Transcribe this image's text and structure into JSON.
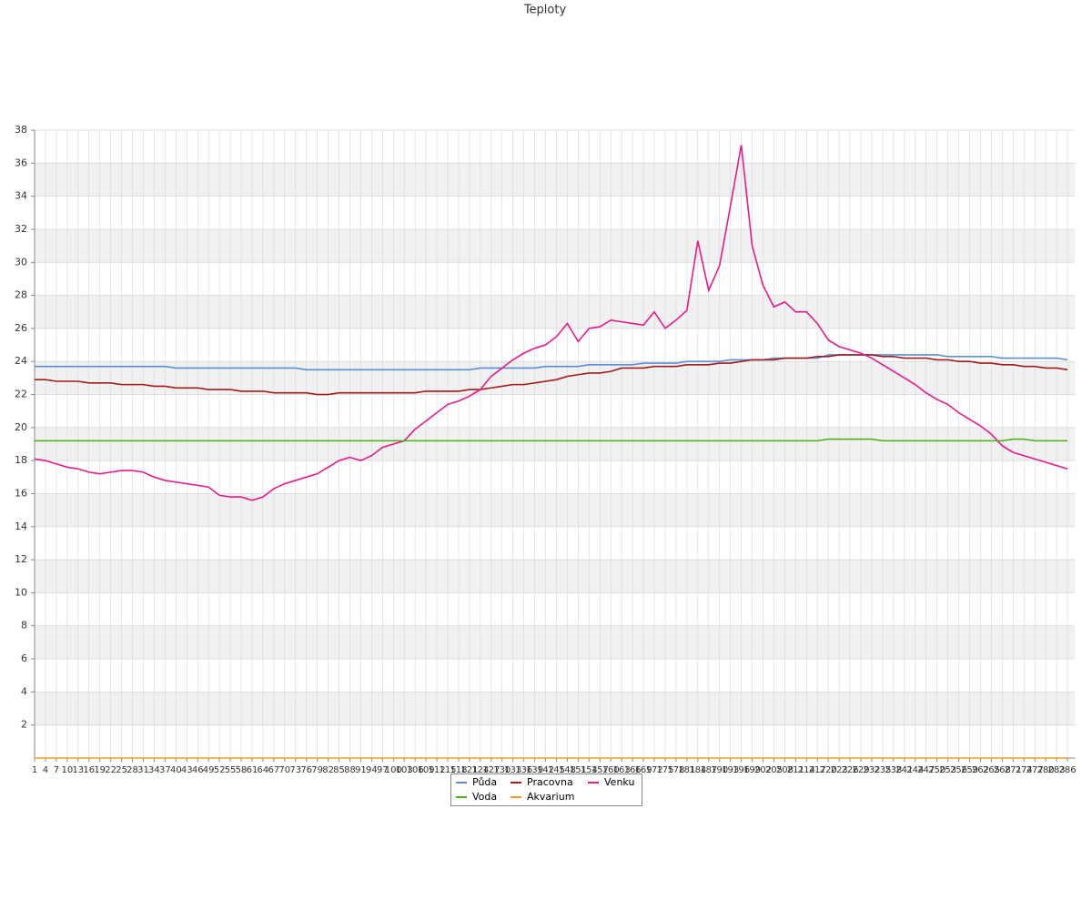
{
  "chart_data": {
    "type": "line",
    "title": "Teploty",
    "x": [
      1,
      4,
      7,
      10,
      13,
      16,
      19,
      22,
      25,
      28,
      31,
      34,
      37,
      40,
      43,
      46,
      49,
      52,
      55,
      58,
      61,
      64,
      67,
      70,
      73,
      76,
      79,
      82,
      85,
      88,
      91,
      94,
      97,
      100,
      103,
      106,
      109,
      112,
      115,
      118,
      121,
      124,
      127,
      130,
      133,
      136,
      139,
      142,
      145,
      148,
      151,
      154,
      157,
      160,
      163,
      166,
      169,
      172,
      175,
      178,
      181,
      184,
      187,
      190,
      193,
      196,
      199,
      202,
      205,
      208,
      211,
      214,
      217,
      220,
      223,
      226,
      229,
      232,
      235,
      238,
      241,
      244,
      247,
      250,
      253,
      256,
      259,
      262,
      265,
      268,
      271,
      274,
      277,
      280,
      283,
      286
    ],
    "xlim": [
      1,
      288
    ],
    "ylim": [
      0,
      38
    ],
    "yticks": [
      2,
      4,
      6,
      8,
      10,
      12,
      14,
      16,
      18,
      20,
      22,
      24,
      26,
      28,
      30,
      32,
      34,
      36,
      38
    ],
    "grid": true,
    "series": [
      {
        "name": "Půda",
        "color": "#5b8fd6",
        "values": [
          23.7,
          23.7,
          23.7,
          23.7,
          23.7,
          23.7,
          23.7,
          23.7,
          23.7,
          23.7,
          23.7,
          23.7,
          23.7,
          23.6,
          23.6,
          23.6,
          23.6,
          23.6,
          23.6,
          23.6,
          23.6,
          23.6,
          23.6,
          23.6,
          23.6,
          23.5,
          23.5,
          23.5,
          23.5,
          23.5,
          23.5,
          23.5,
          23.5,
          23.5,
          23.5,
          23.5,
          23.5,
          23.5,
          23.5,
          23.5,
          23.5,
          23.6,
          23.6,
          23.6,
          23.6,
          23.6,
          23.6,
          23.7,
          23.7,
          23.7,
          23.7,
          23.8,
          23.8,
          23.8,
          23.8,
          23.8,
          23.9,
          23.9,
          23.9,
          23.9,
          24.0,
          24.0,
          24.0,
          24.0,
          24.1,
          24.1,
          24.1,
          24.1,
          24.2,
          24.2,
          24.2,
          24.2,
          24.2,
          24.4,
          24.4,
          24.4,
          24.4,
          24.4,
          24.4,
          24.4,
          24.4,
          24.4,
          24.4,
          24.4,
          24.3,
          24.3,
          24.3,
          24.3,
          24.3,
          24.2,
          24.2,
          24.2,
          24.2,
          24.2,
          24.2,
          24.1
        ]
      },
      {
        "name": "Pracovna",
        "color": "#a31b1b",
        "values": [
          22.9,
          22.9,
          22.8,
          22.8,
          22.8,
          22.7,
          22.7,
          22.7,
          22.6,
          22.6,
          22.6,
          22.5,
          22.5,
          22.4,
          22.4,
          22.4,
          22.3,
          22.3,
          22.3,
          22.2,
          22.2,
          22.2,
          22.1,
          22.1,
          22.1,
          22.1,
          22.0,
          22.0,
          22.1,
          22.1,
          22.1,
          22.1,
          22.1,
          22.1,
          22.1,
          22.1,
          22.2,
          22.2,
          22.2,
          22.2,
          22.3,
          22.3,
          22.4,
          22.5,
          22.6,
          22.6,
          22.7,
          22.8,
          22.9,
          23.1,
          23.2,
          23.3,
          23.3,
          23.4,
          23.6,
          23.6,
          23.6,
          23.7,
          23.7,
          23.7,
          23.8,
          23.8,
          23.8,
          23.9,
          23.9,
          24.0,
          24.1,
          24.1,
          24.1,
          24.2,
          24.2,
          24.2,
          24.3,
          24.3,
          24.4,
          24.4,
          24.4,
          24.4,
          24.3,
          24.3,
          24.2,
          24.2,
          24.2,
          24.1,
          24.1,
          24.0,
          24.0,
          23.9,
          23.9,
          23.8,
          23.8,
          23.7,
          23.7,
          23.6,
          23.6,
          23.5
        ]
      },
      {
        "name": "Venku",
        "color": "#e8198b",
        "values": [
          18.1,
          18.0,
          17.8,
          17.6,
          17.5,
          17.3,
          17.2,
          17.3,
          17.4,
          17.4,
          17.3,
          17.0,
          16.8,
          16.7,
          16.6,
          16.5,
          16.4,
          15.9,
          15.8,
          15.8,
          15.6,
          15.8,
          16.3,
          16.6,
          16.8,
          17.0,
          17.2,
          17.6,
          18.0,
          18.2,
          18.0,
          18.3,
          18.8,
          19.0,
          19.2,
          19.9,
          20.4,
          20.9,
          21.4,
          21.6,
          21.9,
          22.3,
          23.1,
          23.6,
          24.1,
          24.5,
          24.8,
          25.0,
          25.5,
          26.3,
          25.2,
          26.0,
          26.1,
          26.5,
          26.4,
          26.3,
          26.2,
          27.0,
          26.0,
          26.5,
          27.1,
          31.3,
          28.3,
          29.8,
          33.4,
          37.1,
          31.0,
          28.6,
          27.3,
          27.6,
          27.0,
          27.0,
          26.3,
          25.3,
          24.9,
          24.7,
          24.5,
          24.2,
          23.8,
          23.4,
          23.0,
          22.6,
          22.1,
          21.7,
          21.4,
          20.9,
          20.5,
          20.1,
          19.6,
          18.9,
          18.5,
          18.3,
          18.1,
          17.9,
          17.7,
          17.5
        ]
      },
      {
        "name": "Voda",
        "color": "#4caf1a",
        "values": [
          19.2,
          19.2,
          19.2,
          19.2,
          19.2,
          19.2,
          19.2,
          19.2,
          19.2,
          19.2,
          19.2,
          19.2,
          19.2,
          19.2,
          19.2,
          19.2,
          19.2,
          19.2,
          19.2,
          19.2,
          19.2,
          19.2,
          19.2,
          19.2,
          19.2,
          19.2,
          19.2,
          19.2,
          19.2,
          19.2,
          19.2,
          19.2,
          19.2,
          19.2,
          19.2,
          19.2,
          19.2,
          19.2,
          19.2,
          19.2,
          19.2,
          19.2,
          19.2,
          19.2,
          19.2,
          19.2,
          19.2,
          19.2,
          19.2,
          19.2,
          19.2,
          19.2,
          19.2,
          19.2,
          19.2,
          19.2,
          19.2,
          19.2,
          19.2,
          19.2,
          19.2,
          19.2,
          19.2,
          19.2,
          19.2,
          19.2,
          19.2,
          19.2,
          19.2,
          19.2,
          19.2,
          19.2,
          19.2,
          19.3,
          19.3,
          19.3,
          19.3,
          19.3,
          19.2,
          19.2,
          19.2,
          19.2,
          19.2,
          19.2,
          19.2,
          19.2,
          19.2,
          19.2,
          19.2,
          19.2,
          19.3,
          19.3,
          19.2,
          19.2,
          19.2,
          19.2
        ]
      },
      {
        "name": "Akvarium",
        "color": "#f0a020",
        "values": [
          0,
          0,
          0,
          0,
          0,
          0,
          0,
          0,
          0,
          0,
          0,
          0,
          0,
          0,
          0,
          0,
          0,
          0,
          0,
          0,
          0,
          0,
          0,
          0,
          0,
          0,
          0,
          0,
          0,
          0,
          0,
          0,
          0,
          0,
          0,
          0,
          0,
          0,
          0,
          0,
          0,
          0,
          0,
          0,
          0,
          0,
          0,
          0,
          0,
          0,
          0,
          0,
          0,
          0,
          0,
          0,
          0,
          0,
          0,
          0,
          0,
          0,
          0,
          0,
          0,
          0,
          0,
          0,
          0,
          0,
          0,
          0,
          0,
          0,
          0,
          0,
          0,
          0,
          0,
          0,
          0,
          0,
          0,
          0,
          0,
          0,
          0,
          0,
          0,
          0,
          0,
          0,
          0,
          0,
          0,
          0
        ]
      }
    ]
  }
}
